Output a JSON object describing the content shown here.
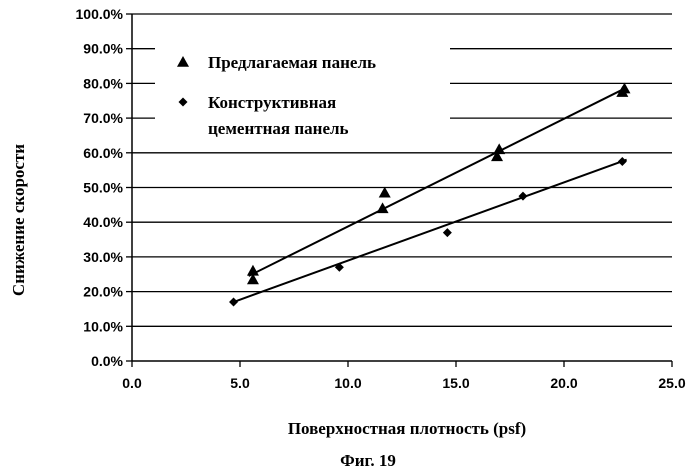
{
  "chart_data": {
    "type": "scatter",
    "title": "",
    "xlabel": "Поверхностная плотность (psf)",
    "ylabel": "Снижение скорости",
    "caption": "Фиг. 19",
    "xlim": [
      0,
      25
    ],
    "ylim": [
      0,
      100
    ],
    "x_ticks": [
      0,
      5,
      10,
      15,
      20,
      25
    ],
    "y_ticks": [
      0,
      10,
      20,
      30,
      40,
      50,
      60,
      70,
      80,
      90,
      100
    ],
    "x_tick_labels": [
      "0.0",
      "5.0",
      "10.0",
      "15.0",
      "20.0",
      "25.0"
    ],
    "y_tick_labels": [
      "0.0%",
      "10.0%",
      "20.0%",
      "30.0%",
      "40.0%",
      "50.0%",
      "60.0%",
      "70.0%",
      "80.0%",
      "90.0%",
      "100.0%"
    ],
    "grid": "horizontal",
    "legend_position": "top-left",
    "series": [
      {
        "name": "Предлагаемая панель",
        "marker": "triangle",
        "color": "#000000",
        "x": [
          5.6,
          5.6,
          11.6,
          11.7,
          16.9,
          17.0,
          22.7,
          22.8
        ],
        "y": [
          23.5,
          26.0,
          44.0,
          48.5,
          59.0,
          61.0,
          77.5,
          78.5
        ],
        "trendline": {
          "x": [
            5.4,
            22.9
          ],
          "y": [
            24.5,
            78.8
          ]
        }
      },
      {
        "name": "Конструктивная\nцементная панель",
        "marker": "diamond",
        "color": "#000000",
        "x": [
          4.7,
          9.6,
          14.6,
          18.1,
          22.7
        ],
        "y": [
          17.0,
          27.0,
          37.0,
          47.5,
          57.5
        ],
        "trendline": {
          "x": [
            4.7,
            22.9
          ],
          "y": [
            17.0,
            58.0
          ]
        }
      }
    ]
  }
}
